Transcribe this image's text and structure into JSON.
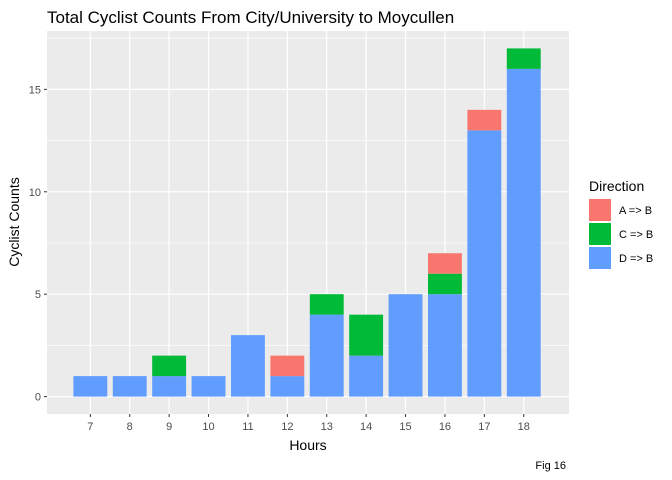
{
  "chart_data": {
    "type": "bar",
    "stacked": true,
    "title": "Total Cyclist Counts From City/University to Moycullen",
    "xlabel": "Hours",
    "ylabel": "Cyclist Counts",
    "caption": "Fig 16",
    "categories": [
      "7",
      "8",
      "9",
      "10",
      "11",
      "12",
      "13",
      "14",
      "15",
      "16",
      "17",
      "18"
    ],
    "ylim": [
      -0.85,
      17.85
    ],
    "yticks": [
      0,
      5,
      10,
      15
    ],
    "grid": true,
    "legend": {
      "title": "Direction",
      "position": "right"
    },
    "series": [
      {
        "name": "A => B",
        "color": "#F8766D",
        "values": [
          0,
          0,
          0,
          0,
          0,
          1,
          0,
          0,
          0,
          1,
          1,
          0
        ]
      },
      {
        "name": "C => B",
        "color": "#00BA38",
        "values": [
          0,
          0,
          1,
          0,
          0,
          0,
          1,
          2,
          0,
          1,
          0,
          1
        ]
      },
      {
        "name": "D => B",
        "color": "#619CFF",
        "values": [
          1,
          1,
          1,
          1,
          3,
          1,
          4,
          2,
          5,
          5,
          13,
          16
        ]
      }
    ],
    "stack_order_bottom_to_top": [
      "D => B",
      "C => B",
      "A => B"
    ],
    "panel_background": "#EBEBEB",
    "grid_color": "#FFFFFF"
  }
}
